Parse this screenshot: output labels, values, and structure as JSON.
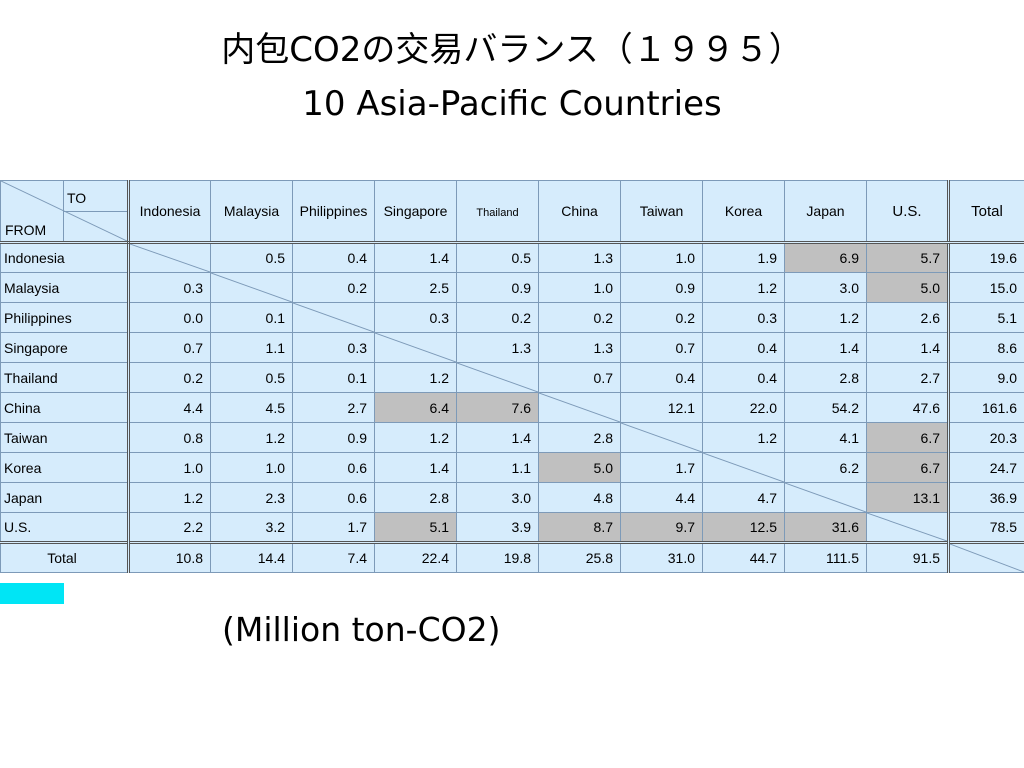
{
  "title": {
    "line1": "内包CO2の交易バランス（１９９５）",
    "line2": "10 Asia-Pacific Countries"
  },
  "table": {
    "corner_to": "TO",
    "corner_from": "FROM",
    "columns": [
      "Indonesia",
      "Malaysia",
      "Philippines",
      "Singapore",
      "Thailand",
      "China",
      "Taiwan",
      "Korea",
      "Japan",
      "U.S."
    ],
    "total_header": "Total",
    "rows": [
      {
        "label": "Indonesia",
        "values": [
          "",
          "0.5",
          "0.4",
          "1.4",
          "0.5",
          "1.3",
          "1.0",
          "1.9",
          "6.9",
          "5.7"
        ],
        "total": "19.6"
      },
      {
        "label": "Malaysia",
        "values": [
          "0.3",
          "",
          "0.2",
          "2.5",
          "0.9",
          "1.0",
          "0.9",
          "1.2",
          "3.0",
          "5.0"
        ],
        "total": "15.0"
      },
      {
        "label": "Philippines",
        "values": [
          "0.0",
          "0.1",
          "",
          "0.3",
          "0.2",
          "0.2",
          "0.2",
          "0.3",
          "1.2",
          "2.6"
        ],
        "total": "5.1"
      },
      {
        "label": "Singapore",
        "values": [
          "0.7",
          "1.1",
          "0.3",
          "",
          "1.3",
          "1.3",
          "0.7",
          "0.4",
          "1.4",
          "1.4"
        ],
        "total": "8.6"
      },
      {
        "label": "Thailand",
        "values": [
          "0.2",
          "0.5",
          "0.1",
          "1.2",
          "",
          "0.7",
          "0.4",
          "0.4",
          "2.8",
          "2.7"
        ],
        "total": "9.0"
      },
      {
        "label": "China",
        "values": [
          "4.4",
          "4.5",
          "2.7",
          "6.4",
          "7.6",
          "",
          "12.1",
          "22.0",
          "54.2",
          "47.6"
        ],
        "total": "161.6"
      },
      {
        "label": "Taiwan",
        "values": [
          "0.8",
          "1.2",
          "0.9",
          "1.2",
          "1.4",
          "2.8",
          "",
          "1.2",
          "4.1",
          "6.7"
        ],
        "total": "20.3"
      },
      {
        "label": "Korea",
        "values": [
          "1.0",
          "1.0",
          "0.6",
          "1.4",
          "1.1",
          "5.0",
          "1.7",
          "",
          "6.2",
          "6.7"
        ],
        "total": "24.7"
      },
      {
        "label": "Japan",
        "values": [
          "1.2",
          "2.3",
          "0.6",
          "2.8",
          "3.0",
          "4.8",
          "4.4",
          "4.7",
          "",
          "13.1"
        ],
        "total": "36.9"
      },
      {
        "label": "U.S.",
        "values": [
          "2.2",
          "3.2",
          "1.7",
          "5.1",
          "3.9",
          "8.7",
          "9.7",
          "12.5",
          "31.6",
          ""
        ],
        "total": "78.5"
      }
    ],
    "total_row": {
      "label": "Total",
      "values": [
        "10.8",
        "14.4",
        "7.4",
        "22.4",
        "19.8",
        "25.8",
        "31.0",
        "44.7",
        "111.5",
        "91.5"
      ]
    },
    "highlighted_cells": [
      [
        0,
        8
      ],
      [
        0,
        9
      ],
      [
        1,
        9
      ],
      [
        5,
        3
      ],
      [
        5,
        4
      ],
      [
        6,
        9
      ],
      [
        7,
        5
      ],
      [
        7,
        9
      ],
      [
        8,
        9
      ],
      [
        9,
        3
      ],
      [
        9,
        5
      ],
      [
        9,
        6
      ],
      [
        9,
        7
      ],
      [
        9,
        8
      ]
    ],
    "colors": {
      "cell_background": "#d6ecfc",
      "highlight": "#c0c0c0",
      "accent_block": "#00e5f5"
    }
  },
  "unit_note": "(Million ton-CO2)"
}
